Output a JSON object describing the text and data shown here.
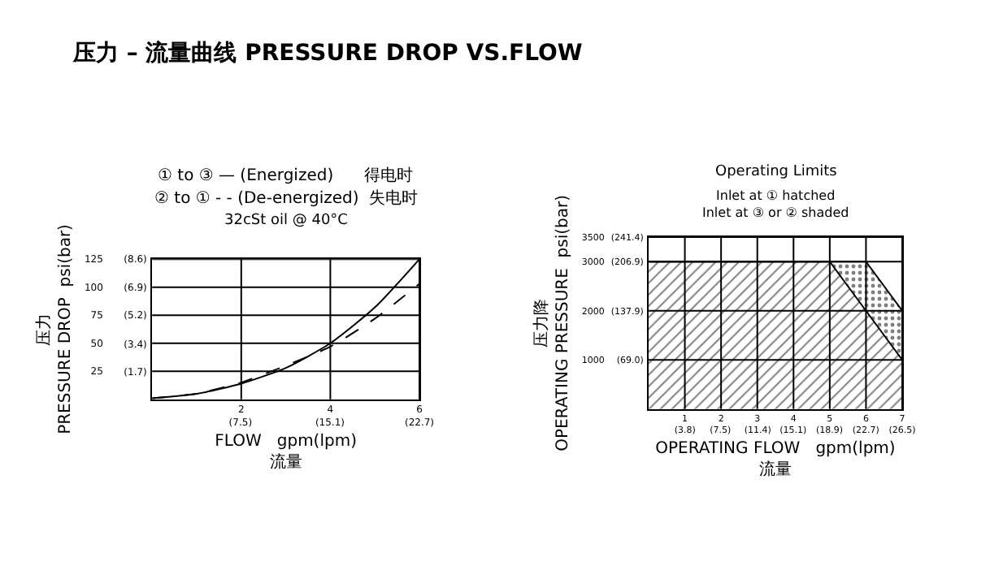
{
  "chart_data": [
    {
      "type": "line",
      "title": "压力 – 流量曲线 PRESSURE DROP VS.FLOW",
      "annotations": [
        "① to ③ — (Energized)      得电时",
        "② to ① - - (De-energized)  失电时",
        "32cSt oil @ 40°C"
      ],
      "xlabel": "FLOW   gpm(lpm)\n流量",
      "ylabel": "压力\nPRESSURE DROP  psi(bar)",
      "x": [
        0,
        1,
        2,
        3,
        4,
        5,
        6
      ],
      "series": [
        {
          "color": "#000000",
          "line_style": "solid",
          "values": [
            1,
            5,
            14,
            28,
            50,
            82,
            125
          ]
        },
        {
          "color": "#000000",
          "line_style": "dashed",
          "values": [
            1,
            5,
            15,
            30,
            47,
            72,
            103
          ]
        }
      ],
      "xlim": [
        0,
        6
      ],
      "ylim": [
        0,
        125
      ],
      "xticks": [
        2,
        4,
        6
      ],
      "yticks": [
        25,
        50,
        75,
        100,
        125
      ],
      "x2lim": [
        0,
        22.7
      ],
      "x2ticks": [
        {
          "value": 7.5,
          "label": "(7.5)"
        },
        {
          "value": 15.1,
          "label": "(15.1)"
        },
        {
          "value": 22.7,
          "label": "(22.7)"
        }
      ],
      "y2lim": [
        0,
        8.6
      ],
      "y2ticks": [
        {
          "value": 1.7,
          "label": "(1.7)"
        },
        {
          "value": 3.4,
          "label": "(3.4)"
        },
        {
          "value": 5.2,
          "label": "(5.2)"
        },
        {
          "value": 6.9,
          "label": "(6.9)"
        },
        {
          "value": 8.6,
          "label": "(8.6)"
        }
      ],
      "grid": true
    },
    {
      "type": "area",
      "title": "Operating Limits",
      "subtitle": "Inlet at ① hatched\nInlet at ③ or ② shaded",
      "xlabel": "OPERATING FLOW   gpm(lpm)\n流量",
      "ylabel": "压力降\nOPERATING PRESSURE  psi(bar)",
      "x": [
        0,
        5,
        6,
        7
      ],
      "series": [
        {
          "color": "#000000",
          "values": [
            3000,
            3000,
            2000,
            1000
          ]
        },
        {
          "color": "#000000",
          "values": [
            3000,
            3000,
            3000,
            2000
          ]
        }
      ],
      "xlim": [
        0,
        7
      ],
      "ylim": [
        0,
        3500
      ],
      "xticks": [
        1,
        2,
        3,
        4,
        5,
        6,
        7
      ],
      "yticks": [
        1000,
        2000,
        3000,
        3500
      ],
      "x2lim": [
        0,
        26.5
      ],
      "x2ticks": [
        {
          "value": 3.8,
          "label": "(3.8)"
        },
        {
          "value": 7.5,
          "label": "(7.5)"
        },
        {
          "value": 11.4,
          "label": "(11.4)"
        },
        {
          "value": 15.1,
          "label": "(15.1)"
        },
        {
          "value": 18.9,
          "label": "(18.9)"
        },
        {
          "value": 22.7,
          "label": "(22.7)"
        },
        {
          "value": 26.5,
          "label": "(26.5)"
        }
      ],
      "y2lim": [
        0,
        241.4
      ],
      "y2ticks": [
        {
          "value": 69.0,
          "label": "(69.0)"
        },
        {
          "value": 137.9,
          "label": "(137.9)"
        },
        {
          "value": 206.9,
          "label": "(206.9)"
        },
        {
          "value": 241.4,
          "label": "(241.4)"
        }
      ],
      "grid": true
    }
  ]
}
